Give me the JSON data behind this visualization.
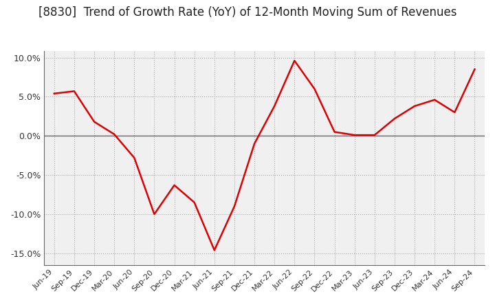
{
  "title": "[8830]  Trend of Growth Rate (YoY) of 12-Month Moving Sum of Revenues",
  "title_fontsize": 12,
  "line_color": "#dd0000",
  "background_color": "#ffffff",
  "plot_bg_color": "#f0f0f0",
  "grid_color": "#aaaaaa",
  "zero_line_color": "#666666",
  "ylim": [
    -0.165,
    0.108
  ],
  "yticks": [
    0.1,
    0.05,
    0.0,
    -0.05,
    -0.1,
    -0.15
  ],
  "dates": [
    "Jun-19",
    "Sep-19",
    "Dec-19",
    "Mar-20",
    "Jun-20",
    "Sep-20",
    "Dec-20",
    "Mar-21",
    "Jun-21",
    "Sep-21",
    "Dec-21",
    "Mar-22",
    "Jun-22",
    "Sep-22",
    "Dec-22",
    "Mar-23",
    "Jun-23",
    "Sep-23",
    "Dec-23",
    "Mar-24",
    "Jun-24",
    "Sep-24"
  ],
  "values": [
    0.054,
    0.057,
    0.018,
    0.002,
    -0.028,
    -0.1,
    -0.063,
    -0.085,
    -0.146,
    -0.09,
    -0.01,
    0.038,
    0.096,
    0.06,
    0.005,
    0.001,
    0.001,
    0.022,
    0.038,
    0.046,
    0.03,
    0.085
  ]
}
